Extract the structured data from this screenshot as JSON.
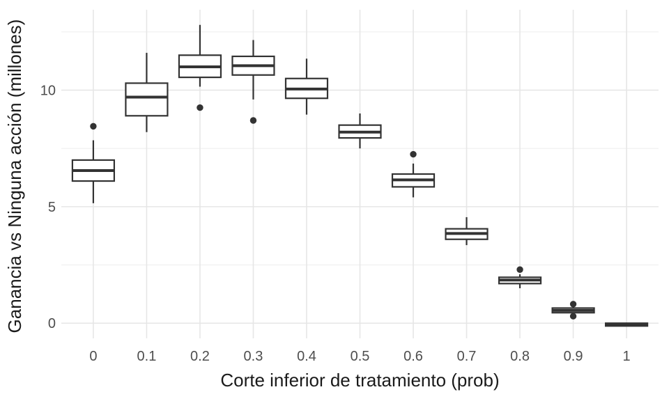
{
  "chart_data": {
    "type": "boxplot",
    "title": "",
    "xlabel": "Corte inferior de tratamiento (prob)",
    "ylabel": "Ganancia vs Ninguna acción (millones)",
    "x_categories": [
      "0",
      "0.1",
      "0.2",
      "0.3",
      "0.4",
      "0.5",
      "0.6",
      "0.7",
      "0.8",
      "0.9",
      "1"
    ],
    "y_ticks": [
      {
        "value": 0,
        "label": "0"
      },
      {
        "value": 5,
        "label": "5"
      },
      {
        "value": 10,
        "label": "10"
      }
    ],
    "y_minor_gridlines": [
      2.5,
      7.5,
      12.5
    ],
    "ylim": [
      -0.65,
      13.45
    ],
    "grid": true,
    "legend": "none",
    "boxes": [
      {
        "x": "0",
        "low": 5.15,
        "q1": 6.1,
        "median": 6.55,
        "q3": 7.0,
        "high": 7.85,
        "outliers": [
          8.45
        ]
      },
      {
        "x": "0.1",
        "low": 8.2,
        "q1": 8.9,
        "median": 9.7,
        "q3": 10.3,
        "high": 11.6,
        "outliers": []
      },
      {
        "x": "0.2",
        "low": 10.15,
        "q1": 10.55,
        "median": 11.0,
        "q3": 11.5,
        "high": 12.8,
        "outliers": [
          9.25
        ]
      },
      {
        "x": "0.3",
        "low": 9.6,
        "q1": 10.65,
        "median": 11.05,
        "q3": 11.45,
        "high": 12.15,
        "outliers": [
          8.7
        ]
      },
      {
        "x": "0.4",
        "low": 8.95,
        "q1": 9.65,
        "median": 10.05,
        "q3": 10.5,
        "high": 11.35,
        "outliers": []
      },
      {
        "x": "0.5",
        "low": 7.5,
        "q1": 7.95,
        "median": 8.2,
        "q3": 8.5,
        "high": 9.0,
        "outliers": []
      },
      {
        "x": "0.6",
        "low": 5.4,
        "q1": 5.85,
        "median": 6.15,
        "q3": 6.4,
        "high": 6.85,
        "outliers": [
          7.25
        ]
      },
      {
        "x": "0.7",
        "low": 3.35,
        "q1": 3.6,
        "median": 3.85,
        "q3": 4.05,
        "high": 4.55,
        "outliers": []
      },
      {
        "x": "0.8",
        "low": 1.5,
        "q1": 1.7,
        "median": 1.85,
        "q3": 1.97,
        "high": 2.1,
        "outliers": [
          2.3
        ]
      },
      {
        "x": "0.9",
        "low": 0.35,
        "q1": 0.45,
        "median": 0.55,
        "q3": 0.65,
        "high": 0.72,
        "outliers": [
          0.82,
          0.3
        ]
      },
      {
        "x": "1",
        "low": -0.12,
        "q1": -0.12,
        "median": -0.06,
        "q3": 0.0,
        "high": 0.0,
        "outliers": []
      }
    ],
    "colors": {
      "box_stroke": "#333333",
      "box_fill": "#ffffff",
      "outlier": "#333333",
      "grid_major": "#e6e6e6",
      "grid_minor": "#efefef",
      "axis_text": "#4d4d4d",
      "axis_title": "#1a1a1a",
      "background": "#ffffff"
    }
  }
}
